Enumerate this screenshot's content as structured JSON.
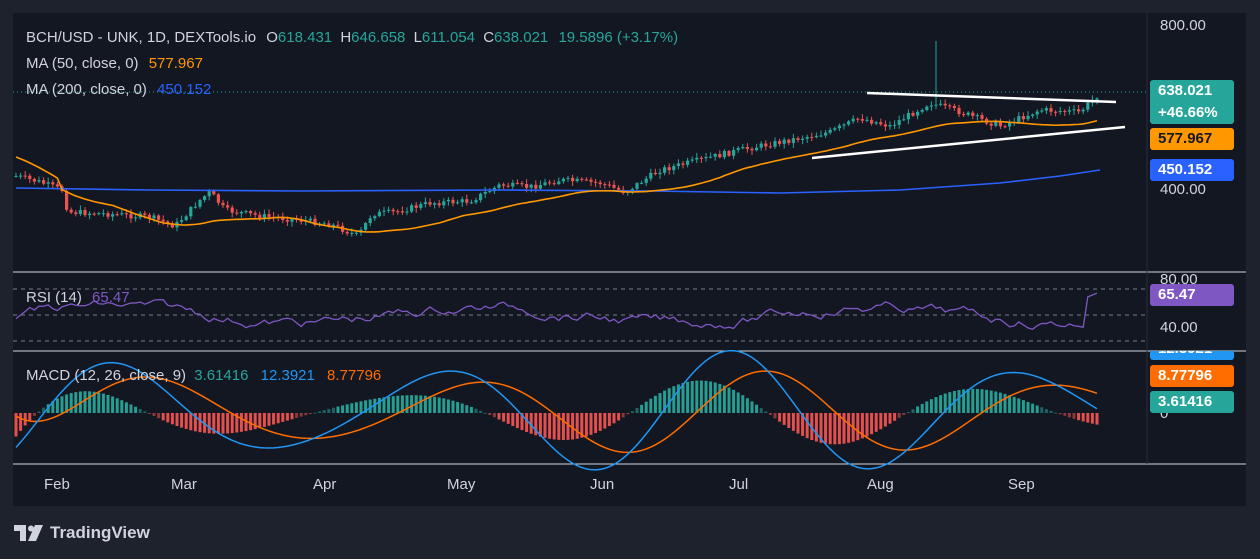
{
  "header": {
    "symbol": "BCH/USD - UNK, 1D, DEXTools.io",
    "o_label": "O",
    "o_value": "618.431",
    "h_label": "H",
    "h_value": "646.658",
    "l_label": "L",
    "l_value": "611.054",
    "c_label": "C",
    "c_value": "638.021",
    "change": "19.5896 (+3.17%)"
  },
  "indicators": {
    "ma50_label": "MA (50, close, 0)",
    "ma50_value": "577.967",
    "ma200_label": "MA (200, close, 0)",
    "ma200_value": "450.152",
    "rsi_label": "RSI (14)",
    "rsi_value": "65.47",
    "macd_label": "MACD (12, 26, close, 9)",
    "macd_hist": "3.61416",
    "macd_line": "12.3921",
    "macd_signal": "8.77796"
  },
  "price_tags": {
    "last_price": "638.021",
    "last_change": "+46.66%",
    "ma50": "577.967",
    "ma200": "450.152",
    "rsi": "65.47",
    "macd_line": "12.3921",
    "macd_signal": "8.77796",
    "macd_hist": "3.61416"
  },
  "axes": {
    "price_ticks": [
      "800.00",
      "400.00"
    ],
    "rsi_ticks": [
      "80.00",
      "40.00"
    ],
    "macd_ticks": [
      "0"
    ],
    "months": [
      "Feb",
      "Mar",
      "Apr",
      "May",
      "Jun",
      "Jul",
      "Aug",
      "Sep"
    ]
  },
  "brand": "TradingView",
  "colors": {
    "up": "#26a69a",
    "down": "#ef5350",
    "ma50": "#ff9800",
    "ma200": "#2962ff",
    "rsi": "#7e57c2",
    "macd": "#2196f3",
    "signal": "#ff6d00",
    "background": "#131722"
  },
  "chart_data": {
    "type": "line",
    "title": "BCH/USD - UNK, 1D, DEXTools.io",
    "x_categories": [
      "Feb",
      "Mar",
      "Apr",
      "May",
      "Jun",
      "Jul",
      "Aug",
      "Sep"
    ],
    "price_axis": {
      "ticks": [
        400,
        800
      ],
      "range": [
        320,
        830
      ]
    },
    "close_series": [
      {
        "date": "Jan 27",
        "close": 445
      },
      {
        "date": "Feb 3",
        "close": 420
      },
      {
        "date": "Feb 5",
        "close": 370
      },
      {
        "date": "Feb 15",
        "close": 378
      },
      {
        "date": "Feb 25",
        "close": 365
      },
      {
        "date": "Mar 3",
        "close": 405
      },
      {
        "date": "Mar 6",
        "close": 388
      },
      {
        "date": "Mar 15",
        "close": 378
      },
      {
        "date": "Mar 25",
        "close": 370
      },
      {
        "date": "Apr 5",
        "close": 352
      },
      {
        "date": "Apr 10",
        "close": 345
      },
      {
        "date": "Apr 15",
        "close": 380
      },
      {
        "date": "Apr 25",
        "close": 382
      },
      {
        "date": "May 5",
        "close": 398
      },
      {
        "date": "May 15",
        "close": 405
      },
      {
        "date": "May 20",
        "close": 445
      },
      {
        "date": "May 25",
        "close": 432
      },
      {
        "date": "Jun 1",
        "close": 448
      },
      {
        "date": "Jun 10",
        "close": 452
      },
      {
        "date": "Jun 15",
        "close": 430
      },
      {
        "date": "Jun 25",
        "close": 482
      },
      {
        "date": "Jul 5",
        "close": 500
      },
      {
        "date": "Jul 15",
        "close": 518
      },
      {
        "date": "Jul 25",
        "close": 552
      },
      {
        "date": "Aug 1",
        "close": 570
      },
      {
        "date": "Aug 5",
        "close": 560
      },
      {
        "date": "Aug 10",
        "close": 610
      },
      {
        "date": "Aug 15",
        "close": 590
      },
      {
        "date": "Aug 25",
        "close": 572
      },
      {
        "date": "Sep 1",
        "close": 592
      },
      {
        "date": "Sep 10",
        "close": 608
      },
      {
        "date": "Sep 15",
        "close": 618
      },
      {
        "date": "Sep 17",
        "close": 638
      }
    ],
    "series": [
      {
        "name": "MA (50, close, 0)",
        "last": 577.967
      },
      {
        "name": "MA (200, close, 0)",
        "last": 450.152
      },
      {
        "name": "RSI (14)",
        "last": 65.47,
        "band": [
          30,
          70
        ]
      },
      {
        "name": "MACD (12, 26, close, 9)",
        "macd": 12.3921,
        "signal": 8.77796,
        "histogram": 3.61416
      }
    ],
    "annotations": [
      "symmetrical triangle: descending upper trendline and ascending lower trendline, Jul–Sep"
    ],
    "grid": true,
    "legend": "top-left"
  }
}
